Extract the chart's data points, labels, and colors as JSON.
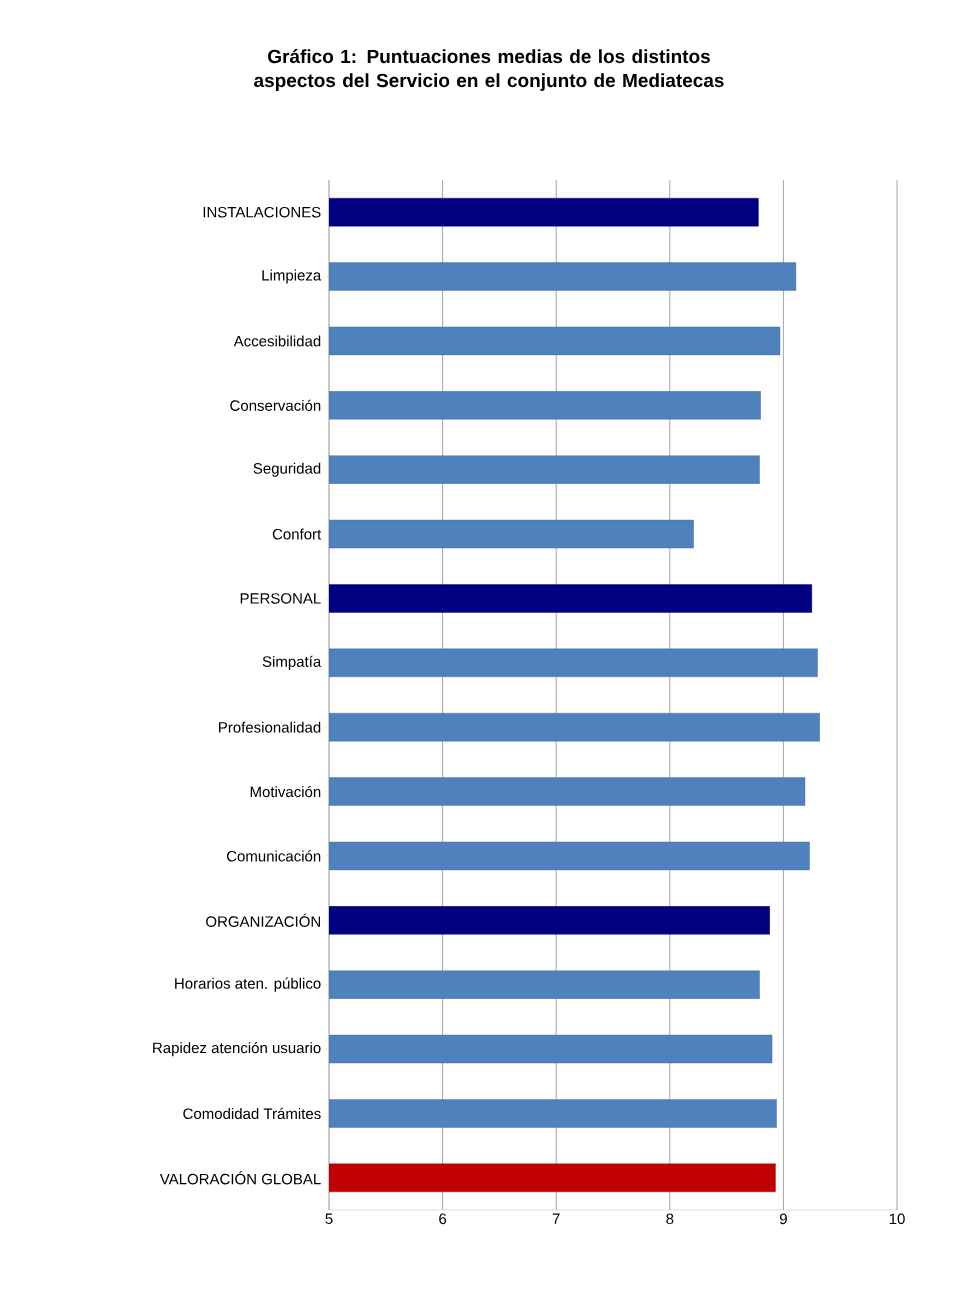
{
  "chart_data": {
    "type": "bar",
    "orientation": "horizontal",
    "title": "Gráfico 1: Puntuaciones medias de los distintos aspectos del Servicio en el conjunto de Mediatecas",
    "categories": [
      "INSTALACIONES",
      "Limpieza",
      "Accesibilidad",
      "Conservación",
      "Seguridad",
      "Confort",
      "PERSONAL",
      "Simpatía",
      "Profesionalidad",
      "Motivación",
      "Comunicación",
      "ORGANIZACIÓN",
      "Horarios aten. público",
      "Rapidez atención usuario",
      "Comodidad Trámites",
      "VALORACIÓN GLOBAL"
    ],
    "values": [
      8.78,
      9.11,
      8.97,
      8.8,
      8.79,
      8.21,
      9.25,
      9.3,
      9.32,
      9.19,
      9.23,
      8.88,
      8.79,
      8.9,
      8.94,
      8.93
    ],
    "colors": [
      "#000080",
      "#4f81bd",
      "#4f81bd",
      "#4f81bd",
      "#4f81bd",
      "#4f81bd",
      "#000080",
      "#4f81bd",
      "#4f81bd",
      "#4f81bd",
      "#4f81bd",
      "#000080",
      "#4f81bd",
      "#4f81bd",
      "#4f81bd",
      "#c00000"
    ],
    "xlim": [
      5,
      10
    ],
    "xticks": [
      5,
      6,
      7,
      8,
      9,
      10
    ],
    "grid": "x"
  }
}
